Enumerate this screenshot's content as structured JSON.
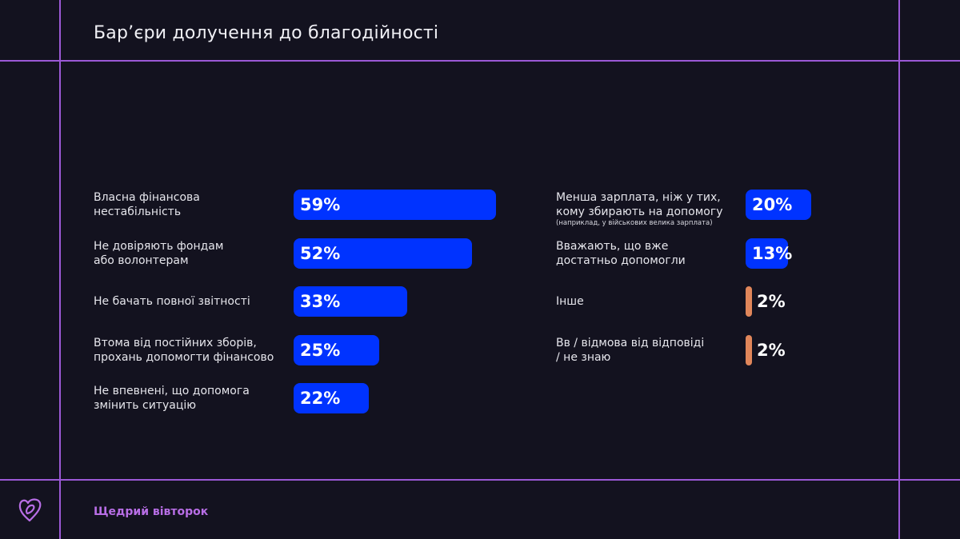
{
  "title": "Бар’єри долучення до благодійності",
  "footer": {
    "brand": "Щедрий вівторок"
  },
  "colors": {
    "background": "#13121f",
    "lines": "#9b59d6",
    "bar_main": "#0033ff",
    "bar_minor": "#e0865a",
    "brand": "#b86ee6"
  },
  "chart_data": {
    "type": "bar",
    "title": "Бар’єри долучення до благодійності",
    "unit": "%",
    "series": [
      {
        "name": "left",
        "items": [
          {
            "label": [
              "Власна фінансова",
              "нестабільність"
            ],
            "value": 59,
            "display": "59%"
          },
          {
            "label": [
              "Не довіряють фондам",
              "або волонтерам"
            ],
            "value": 52,
            "display": "52%"
          },
          {
            "label": [
              "Не бачать повної звітності"
            ],
            "value": 33,
            "display": "33%"
          },
          {
            "label": [
              "Втома від постійних зборів,",
              "прохань допомогти фінансово"
            ],
            "value": 25,
            "display": "25%"
          },
          {
            "label": [
              "Не впевнені, що допомога",
              "змінить ситуацію"
            ],
            "value": 22,
            "display": "22%"
          }
        ]
      },
      {
        "name": "right",
        "items": [
          {
            "label": [
              "Менша зарплата, ніж у тих,",
              "кому збирають на допомогу"
            ],
            "note": "(наприклад, у військових велика зарплата)",
            "value": 20,
            "display": "20%"
          },
          {
            "label": [
              "Вважають, що вже",
              "достатньо допомогли"
            ],
            "value": 13,
            "display": "13%"
          },
          {
            "label": [
              "Інше"
            ],
            "value": 2,
            "display": "2%"
          },
          {
            "label": [
              "Вв / відмова від відповіді",
              "/ не знаю"
            ],
            "value": 2,
            "display": "2%"
          }
        ]
      }
    ]
  }
}
